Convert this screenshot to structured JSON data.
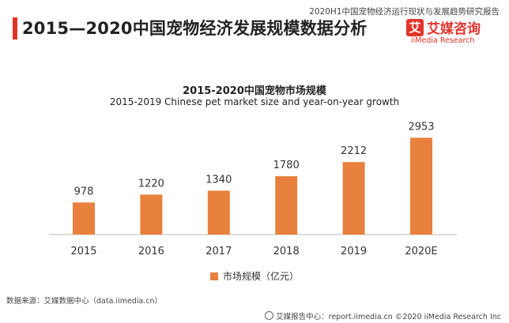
{
  "header": {
    "report_label": "2020H1中国宠物经济运行现状与发展趋势研究报告",
    "title": "2015—2020中国宠物经济发展规模数据分析"
  },
  "logo": {
    "mark": "艾",
    "cn": "艾媒咨询",
    "en": "iiMedia Research"
  },
  "colors": {
    "accent": "#e1342b",
    "bar": "#e8813e"
  },
  "chart_data": {
    "type": "bar",
    "title": "2015-2020中国宠物市场规模",
    "subtitle": "2015-2019 Chinese pet market size and year-on-year growth",
    "categories": [
      "2015",
      "2016",
      "2017",
      "2018",
      "2019",
      "2020E"
    ],
    "series": [
      {
        "name": "市场规模（亿元）",
        "values": [
          978,
          1220,
          1340,
          1780,
          2212,
          2953
        ]
      }
    ],
    "data_labels": [
      "978",
      "1220",
      "1340",
      "1780",
      "2212",
      "2953"
    ],
    "ylim": [
      0,
      3300
    ],
    "grid": false,
    "legend": "bottom-center"
  },
  "footer": {
    "source": "数据来源：艾媒数据中心（data.iimedia.cn）",
    "site": "艾媒报告中心：report.iimedia.cn  ©2020  iiMedia Research  Inc"
  }
}
